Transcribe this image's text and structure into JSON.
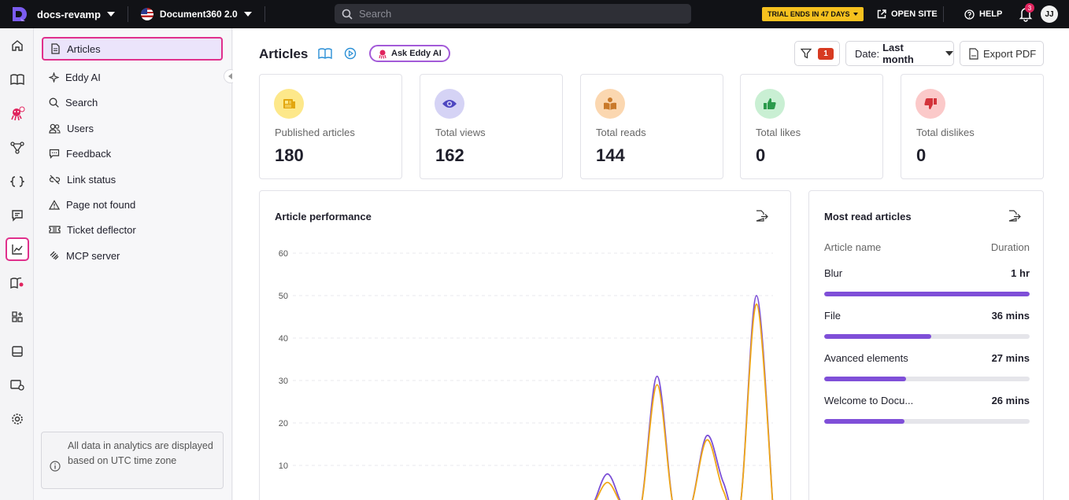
{
  "topbar": {
    "project": "docs-revamp",
    "version": "Document360 2.0",
    "search_placeholder": "Search",
    "trial": "TRIAL ENDS IN 47 DAYS",
    "open_site": "OPEN SITE",
    "help": "HELP",
    "notifications": "3",
    "avatar": "JJ"
  },
  "sidebar": {
    "items": [
      {
        "label": "Articles",
        "icon": "article-icon"
      },
      {
        "label": "Eddy AI",
        "icon": "sparkle-icon"
      },
      {
        "label": "Search",
        "icon": "search-icon"
      },
      {
        "label": "Users",
        "icon": "users-icon"
      },
      {
        "label": "Feedback",
        "icon": "feedback-icon"
      },
      {
        "label": "Link status",
        "icon": "broken-link-icon"
      },
      {
        "label": "Page not found",
        "icon": "warning-icon"
      },
      {
        "label": "Ticket deflector",
        "icon": "ticket-icon"
      },
      {
        "label": "MCP server",
        "icon": "mcp-icon"
      }
    ],
    "note": "All data in analytics are displayed based on UTC time zone"
  },
  "main": {
    "title": "Articles",
    "ask_eddy": "Ask Eddy AI",
    "filter_count": "1",
    "date_label": "Date:",
    "date_value": "Last month",
    "export": "Export PDF",
    "stats": [
      {
        "label": "Published articles",
        "value": "180",
        "color": "#fde88a",
        "icon": "newspaper-icon"
      },
      {
        "label": "Total views",
        "value": "162",
        "color": "#d5d3f5",
        "icon": "eye-icon"
      },
      {
        "label": "Total reads",
        "value": "144",
        "color": "#fbd7b0",
        "icon": "book-reader-icon"
      },
      {
        "label": "Total likes",
        "value": "0",
        "color": "#c9efd3",
        "icon": "thumbs-up-icon"
      },
      {
        "label": "Total dislikes",
        "value": "0",
        "color": "#fbc9c9",
        "icon": "thumbs-down-icon"
      }
    ],
    "performance_title": "Article performance",
    "most_read": {
      "title": "Most read articles",
      "col_name": "Article name",
      "col_duration": "Duration",
      "rows": [
        {
          "name": "Blur",
          "duration": "1 hr",
          "fraction": 1.0
        },
        {
          "name": "File",
          "duration": "36 mins",
          "fraction": 0.52
        },
        {
          "name": "Avanced elements",
          "duration": "27 mins",
          "fraction": 0.4
        },
        {
          "name": "Welcome to Docu...",
          "duration": "26 mins",
          "fraction": 0.39
        }
      ]
    }
  },
  "chart_data": {
    "type": "line",
    "title": "Article performance",
    "ylim": [
      0,
      60
    ],
    "yticks": [
      10,
      20,
      30,
      40,
      50,
      60
    ],
    "x": [
      0,
      1,
      2,
      3,
      4,
      5,
      6,
      7,
      8,
      9,
      10,
      11,
      12,
      13,
      14,
      15,
      16,
      17,
      18,
      19,
      20,
      21,
      22,
      23,
      24,
      25,
      26,
      27,
      28,
      29
    ],
    "series": [
      {
        "color": "#7b4fd6",
        "values": [
          0,
          0,
          0,
          0,
          0,
          0,
          0,
          0,
          0,
          0,
          0,
          0,
          0,
          0,
          0,
          0,
          0,
          0,
          0,
          8,
          0,
          0,
          31,
          0,
          0,
          17,
          6,
          0,
          50,
          0
        ]
      },
      {
        "color": "#f0a818",
        "values": [
          0,
          0,
          0,
          0,
          0,
          0,
          0,
          0,
          0,
          0,
          0,
          0,
          0,
          0,
          0,
          0,
          0,
          0,
          0,
          6,
          0,
          0,
          29,
          0,
          0,
          16,
          4,
          0,
          48,
          0
        ]
      }
    ]
  }
}
